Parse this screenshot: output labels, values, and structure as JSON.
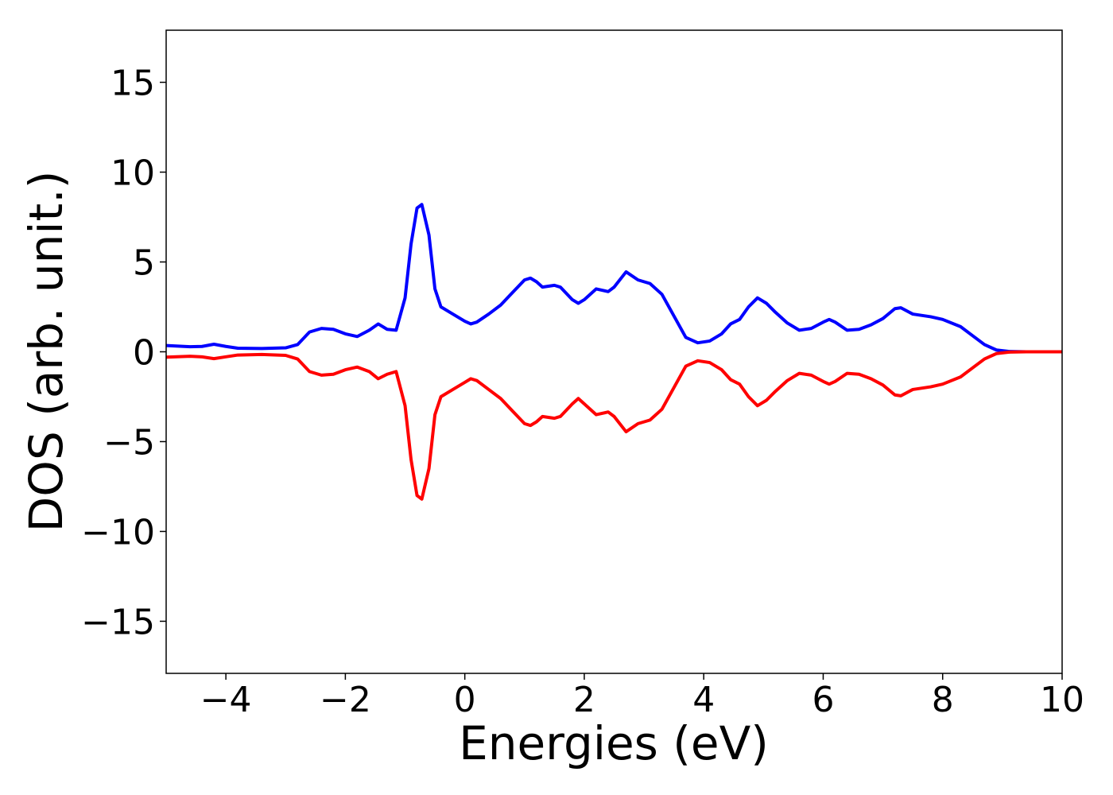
{
  "chart_data": {
    "type": "line",
    "x_label": "Energies (eV)",
    "y_label": "DOS (arb. unit.)",
    "x": [
      -5,
      -4.6,
      -4.4,
      -4.2,
      -4.0,
      -3.8,
      -3.4,
      -3.0,
      -2.8,
      -2.6,
      -2.4,
      -2.2,
      -2.0,
      -1.8,
      -1.6,
      -1.45,
      -1.3,
      -1.15,
      -1.0,
      -0.9,
      -0.8,
      -0.72,
      -0.6,
      -0.5,
      -0.4,
      -0.2,
      0.0,
      0.1,
      0.2,
      0.4,
      0.6,
      0.8,
      1.0,
      1.1,
      1.2,
      1.3,
      1.5,
      1.6,
      1.8,
      1.9,
      2.0,
      2.2,
      2.4,
      2.5,
      2.7,
      2.9,
      3.1,
      3.3,
      3.5,
      3.7,
      3.9,
      4.1,
      4.3,
      4.45,
      4.6,
      4.75,
      4.9,
      5.05,
      5.2,
      5.4,
      5.6,
      5.8,
      6.0,
      6.1,
      6.2,
      6.4,
      6.6,
      6.8,
      7.0,
      7.2,
      7.3,
      7.5,
      7.8,
      8.0,
      8.3,
      8.5,
      8.7,
      8.9,
      9.1,
      9.4,
      10
    ],
    "series": [
      {
        "color": "#0000ff",
        "values": [
          0.35,
          0.28,
          0.3,
          0.42,
          0.3,
          0.2,
          0.18,
          0.22,
          0.4,
          1.1,
          1.3,
          1.25,
          1.0,
          0.85,
          1.2,
          1.55,
          1.25,
          1.2,
          3.0,
          6.0,
          8.0,
          8.2,
          6.5,
          3.5,
          2.5,
          2.1,
          1.7,
          1.55,
          1.65,
          2.1,
          2.6,
          3.3,
          4.0,
          4.1,
          3.9,
          3.6,
          3.7,
          3.6,
          2.9,
          2.7,
          2.9,
          3.5,
          3.35,
          3.6,
          4.45,
          4.0,
          3.8,
          3.2,
          2.0,
          0.8,
          0.5,
          0.6,
          1.0,
          1.55,
          1.8,
          2.5,
          3.0,
          2.7,
          2.2,
          1.6,
          1.2,
          1.3,
          1.65,
          1.8,
          1.65,
          1.2,
          1.25,
          1.5,
          1.85,
          2.4,
          2.45,
          2.1,
          1.95,
          1.8,
          1.4,
          0.9,
          0.4,
          0.1,
          0.02,
          0,
          0
        ]
      },
      {
        "color": "#ff0000",
        "values": [
          -0.3,
          -0.25,
          -0.28,
          -0.38,
          -0.28,
          -0.18,
          -0.15,
          -0.2,
          -0.4,
          -1.1,
          -1.3,
          -1.25,
          -1.0,
          -0.85,
          -1.1,
          -1.5,
          -1.25,
          -1.1,
          -3.0,
          -6.0,
          -8.0,
          -8.2,
          -6.5,
          -3.5,
          -2.5,
          -2.1,
          -1.7,
          -1.5,
          -1.6,
          -2.1,
          -2.6,
          -3.3,
          -4.0,
          -4.1,
          -3.9,
          -3.6,
          -3.7,
          -3.6,
          -2.9,
          -2.6,
          -2.9,
          -3.5,
          -3.35,
          -3.6,
          -4.45,
          -4.0,
          -3.8,
          -3.2,
          -2.0,
          -0.8,
          -0.5,
          -0.6,
          -1.0,
          -1.55,
          -1.8,
          -2.5,
          -3.0,
          -2.7,
          -2.2,
          -1.6,
          -1.2,
          -1.3,
          -1.65,
          -1.8,
          -1.65,
          -1.2,
          -1.25,
          -1.5,
          -1.85,
          -2.4,
          -2.45,
          -2.1,
          -1.95,
          -1.8,
          -1.4,
          -0.9,
          -0.4,
          -0.1,
          -0.02,
          0,
          0
        ]
      }
    ],
    "xlim": [
      -5,
      10
    ],
    "ylim": [
      -17.9,
      17.9
    ],
    "xticks": [
      {
        "value": -4,
        "label": "−4"
      },
      {
        "value": -2,
        "label": "−2"
      },
      0,
      2,
      4,
      6,
      8,
      10
    ],
    "yticks": [
      {
        "value": -15,
        "label": "−15"
      },
      {
        "value": -10,
        "label": "−10"
      },
      {
        "value": -5,
        "label": "−5"
      },
      0,
      5,
      10,
      15
    ],
    "grid": false
  }
}
